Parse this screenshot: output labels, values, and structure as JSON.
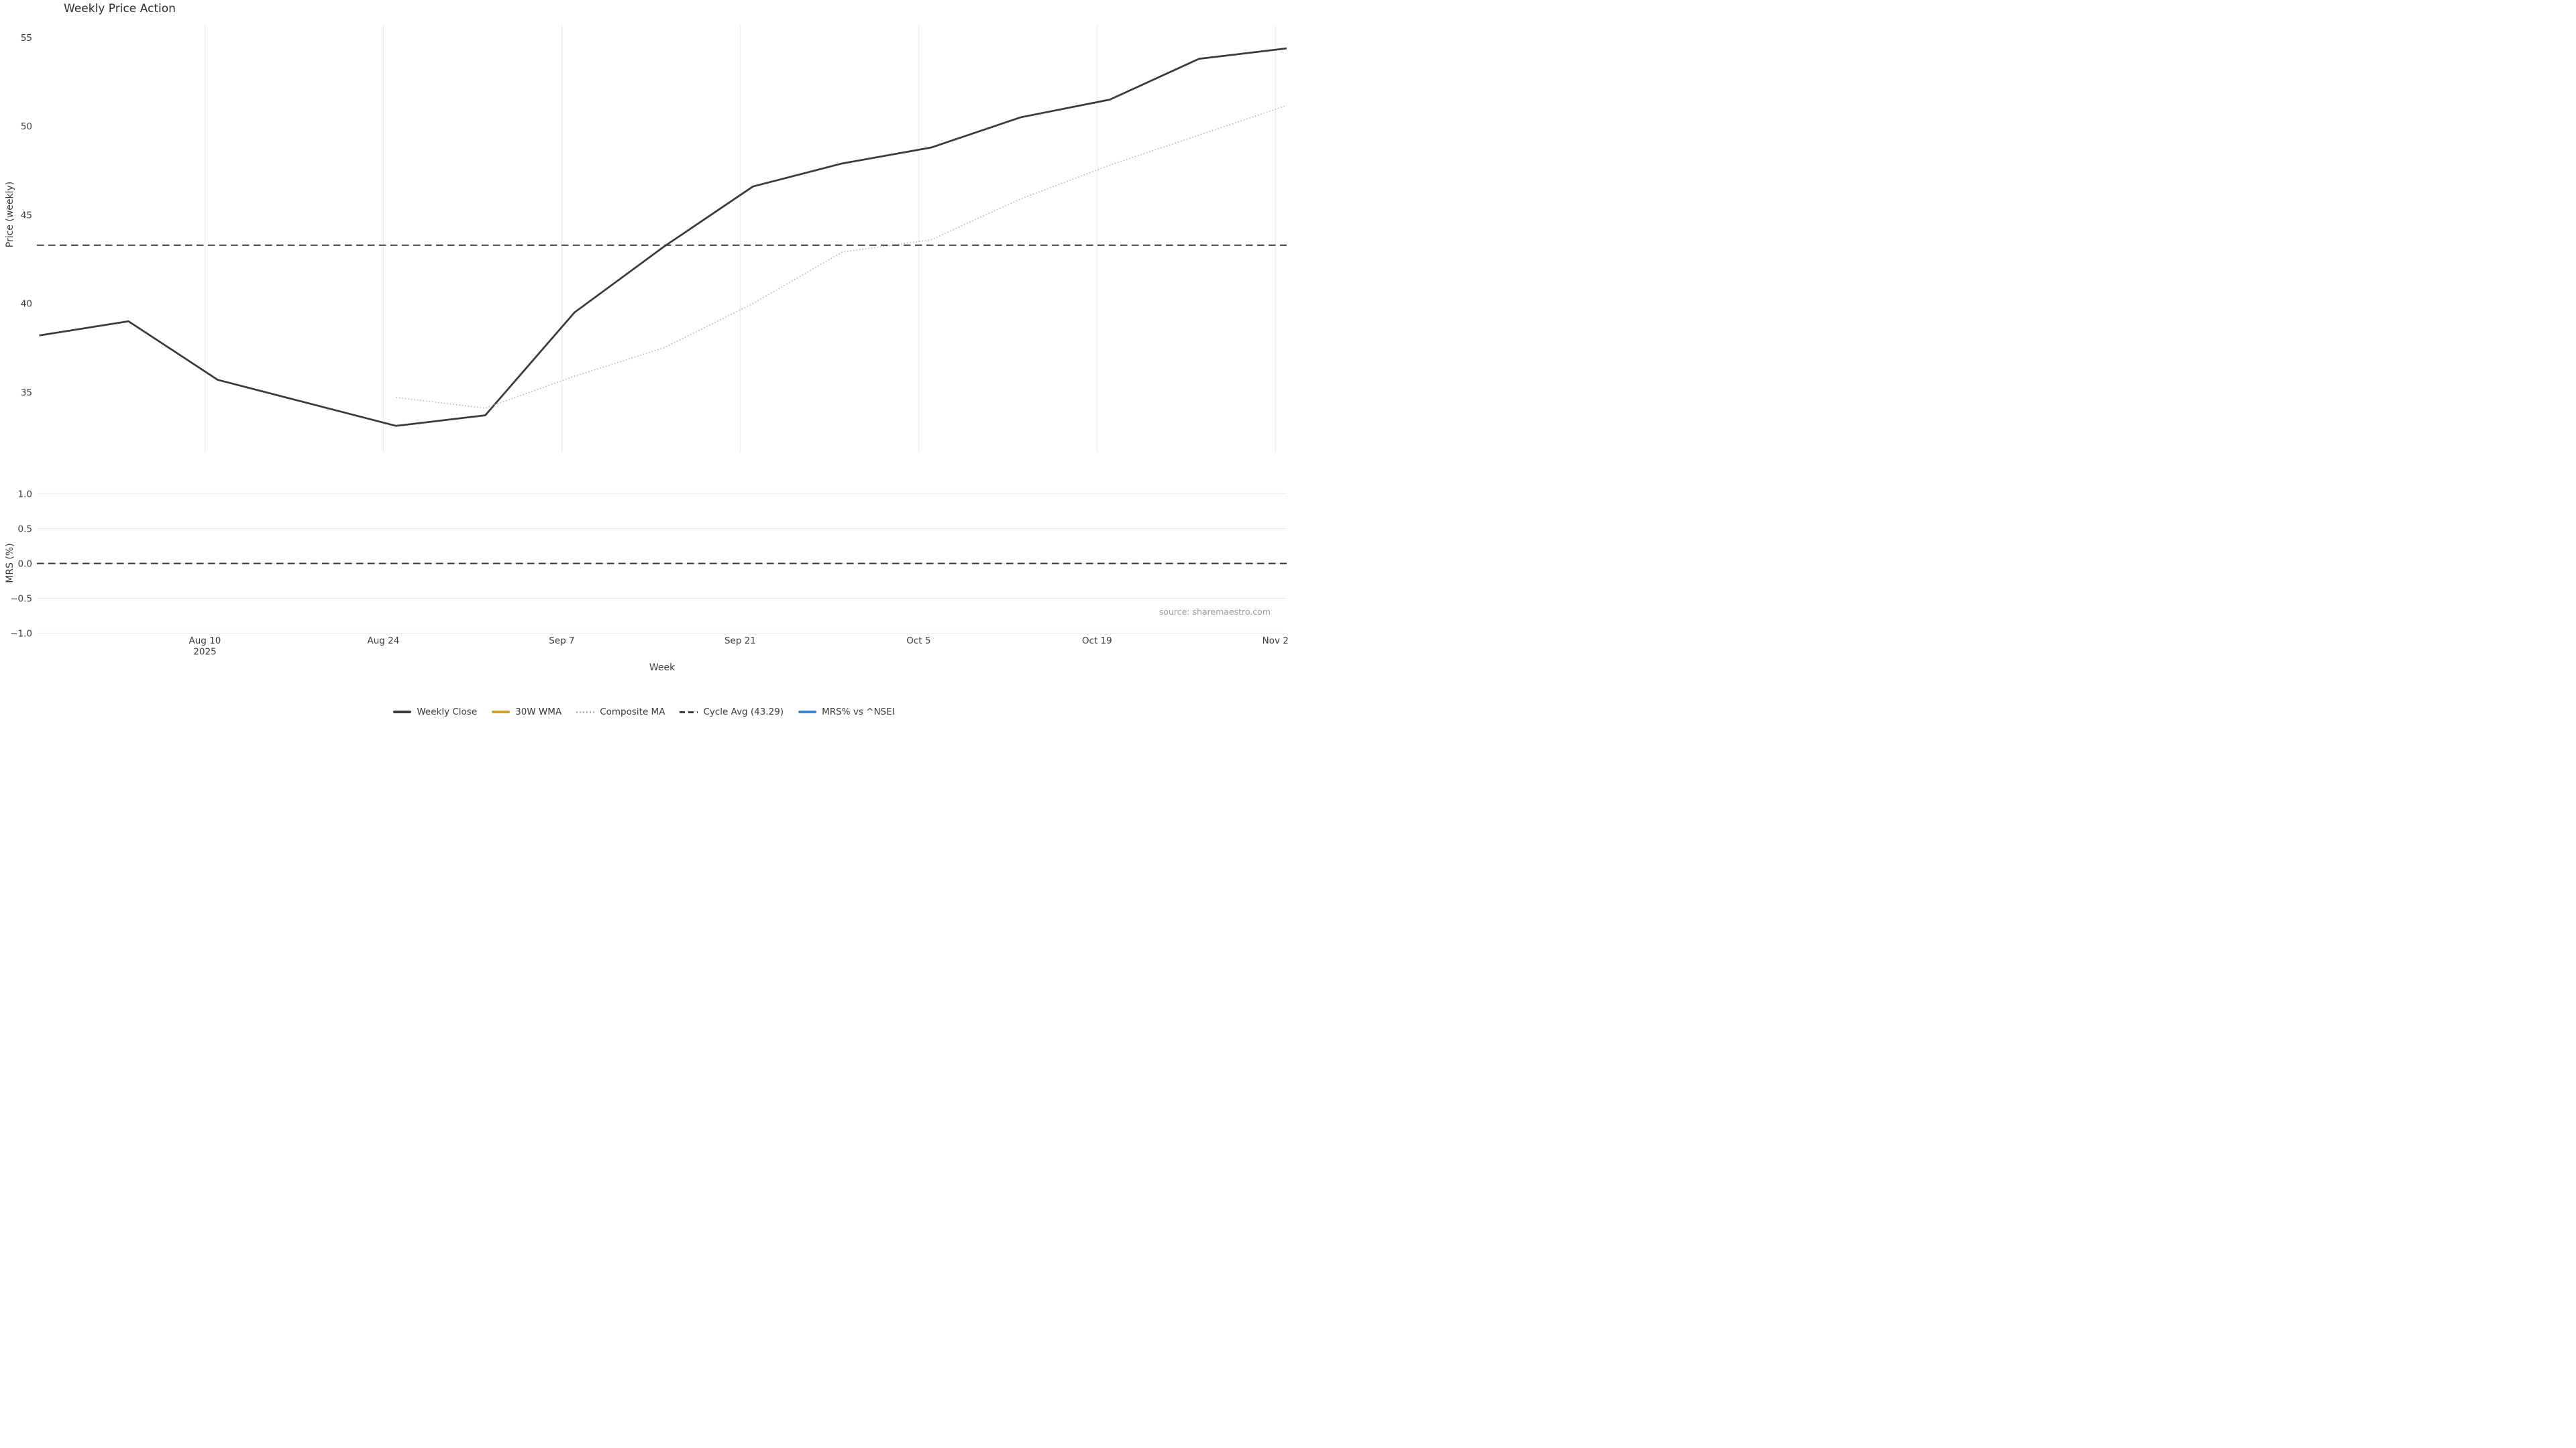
{
  "chart_data": {
    "type": "line",
    "title": "Weekly Price Action",
    "source_note": "source: sharemaestro.com",
    "grid": {
      "top_panel_vertical_grid": true,
      "bottom_panel_horizontal_grid": true
    },
    "x_axis": {
      "label": "Week",
      "xlim_weeks": [
        -0.0263,
        13.9826
      ],
      "ticks": [
        {
          "week_pos": 1.857,
          "lines": [
            "Aug 10",
            "2025"
          ]
        },
        {
          "week_pos": 3.857,
          "lines": [
            "Aug 24"
          ]
        },
        {
          "week_pos": 5.857,
          "lines": [
            "Sep 7"
          ]
        },
        {
          "week_pos": 7.857,
          "lines": [
            "Sep 21"
          ]
        },
        {
          "week_pos": 9.857,
          "lines": [
            "Oct 5"
          ]
        },
        {
          "week_pos": 11.857,
          "lines": [
            "Oct 19"
          ]
        },
        {
          "week_pos": 13.857,
          "lines": [
            "Nov 2"
          ]
        }
      ]
    },
    "top_panel": {
      "ylabel": "Price (weekly)",
      "ylim": [
        31.6,
        55.7
      ],
      "yticks": [
        55,
        50,
        45,
        40,
        35
      ],
      "series": [
        {
          "name": "Weekly Close",
          "style": "solid",
          "color": "#3b3b3b",
          "width": 5.5,
          "x_weeks": [
            0,
            1,
            2,
            3,
            4,
            5,
            6,
            7,
            8,
            9,
            10,
            11,
            12,
            13,
            14
          ],
          "values": [
            38.2,
            39.0,
            35.7,
            34.4,
            33.1,
            33.7,
            39.5,
            43.2,
            46.6,
            47.9,
            48.8,
            50.5,
            51.5,
            53.8,
            54.4
          ]
        },
        {
          "name": "30W WMA",
          "style": "solid",
          "color": "#d2a02a",
          "width": 5.5,
          "x_weeks": [],
          "values": []
        },
        {
          "name": "Composite MA",
          "style": "dotted",
          "color": "#b5b5b5",
          "width": 3.5,
          "x_weeks": [
            4,
            5,
            6,
            7,
            8,
            9,
            10,
            11,
            12,
            13,
            14
          ],
          "values": [
            34.7,
            34.1,
            35.9,
            37.5,
            40.0,
            42.9,
            43.6,
            45.9,
            47.8,
            49.5,
            51.2
          ]
        },
        {
          "name": "Cycle Avg (43.29)",
          "style": "dashed",
          "color": "#3b3b3b",
          "width": 4,
          "constant": 43.29
        }
      ]
    },
    "bottom_panel": {
      "ylabel": "MRS (%)",
      "ylim": [
        -1.019,
        1.053
      ],
      "yticks": [
        {
          "value": 1.0,
          "label": "1.0"
        },
        {
          "value": 0.5,
          "label": "0.5"
        },
        {
          "value": 0.0,
          "label": "0.0"
        },
        {
          "value": -0.5,
          "label": "−0.5"
        },
        {
          "value": -1.0,
          "label": "−1.0"
        }
      ],
      "series": [
        {
          "name": "MRS% vs ^NSEI",
          "style": "solid",
          "color": "#3a87d6",
          "width": 4,
          "x_weeks": [],
          "values": []
        }
      ],
      "zero_line": {
        "value": 0.0,
        "style": "dashed",
        "color": "#3b3b3b"
      }
    },
    "legend": [
      {
        "label": "Weekly Close",
        "color": "#3b3b3b",
        "style": "solid"
      },
      {
        "label": "30W WMA",
        "color": "#d2a02a",
        "style": "solid"
      },
      {
        "label": "Composite MA",
        "color": "#b5b5b5",
        "style": "dotted"
      },
      {
        "label": "Cycle Avg (43.29)",
        "color": "#3b3b3b",
        "style": "dashed"
      },
      {
        "label": "MRS% vs ^NSEI",
        "color": "#3a87d6",
        "style": "solid"
      }
    ]
  }
}
